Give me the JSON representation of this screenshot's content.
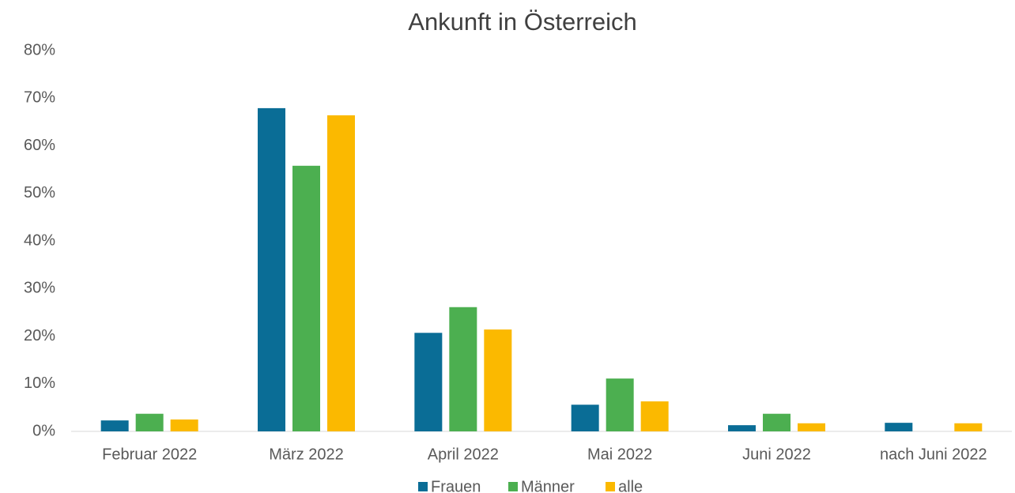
{
  "chart_data": {
    "type": "bar",
    "title": "Ankunft in Österreich",
    "categories": [
      "Februar 2022",
      "März 2022",
      "April 2022",
      "Mai 2022",
      "Juni 2022",
      "nach Juni 2022"
    ],
    "series": [
      {
        "name": "Frauen",
        "color": "#0a6d96",
        "values": [
          2.3,
          67.9,
          20.7,
          5.6,
          1.3,
          1.8
        ]
      },
      {
        "name": "Männer",
        "color": "#4caf50",
        "values": [
          3.7,
          55.8,
          26.1,
          11.1,
          3.7,
          0
        ]
      },
      {
        "name": "alle",
        "color": "#fbb900",
        "values": [
          2.5,
          66.4,
          21.4,
          6.3,
          1.7,
          1.7
        ]
      }
    ],
    "ylim": [
      0,
      80
    ],
    "yticks": [
      {
        "value": 0,
        "label": "0%"
      },
      {
        "value": 10,
        "label": "10%"
      },
      {
        "value": 20,
        "label": "20%"
      },
      {
        "value": 30,
        "label": "30%"
      },
      {
        "value": 40,
        "label": "40%"
      },
      {
        "value": 50,
        "label": "50%"
      },
      {
        "value": 60,
        "label": "60%"
      },
      {
        "value": 70,
        "label": "70%"
      },
      {
        "value": 80,
        "label": "80%"
      }
    ],
    "grid": false,
    "legend": "bottom"
  }
}
